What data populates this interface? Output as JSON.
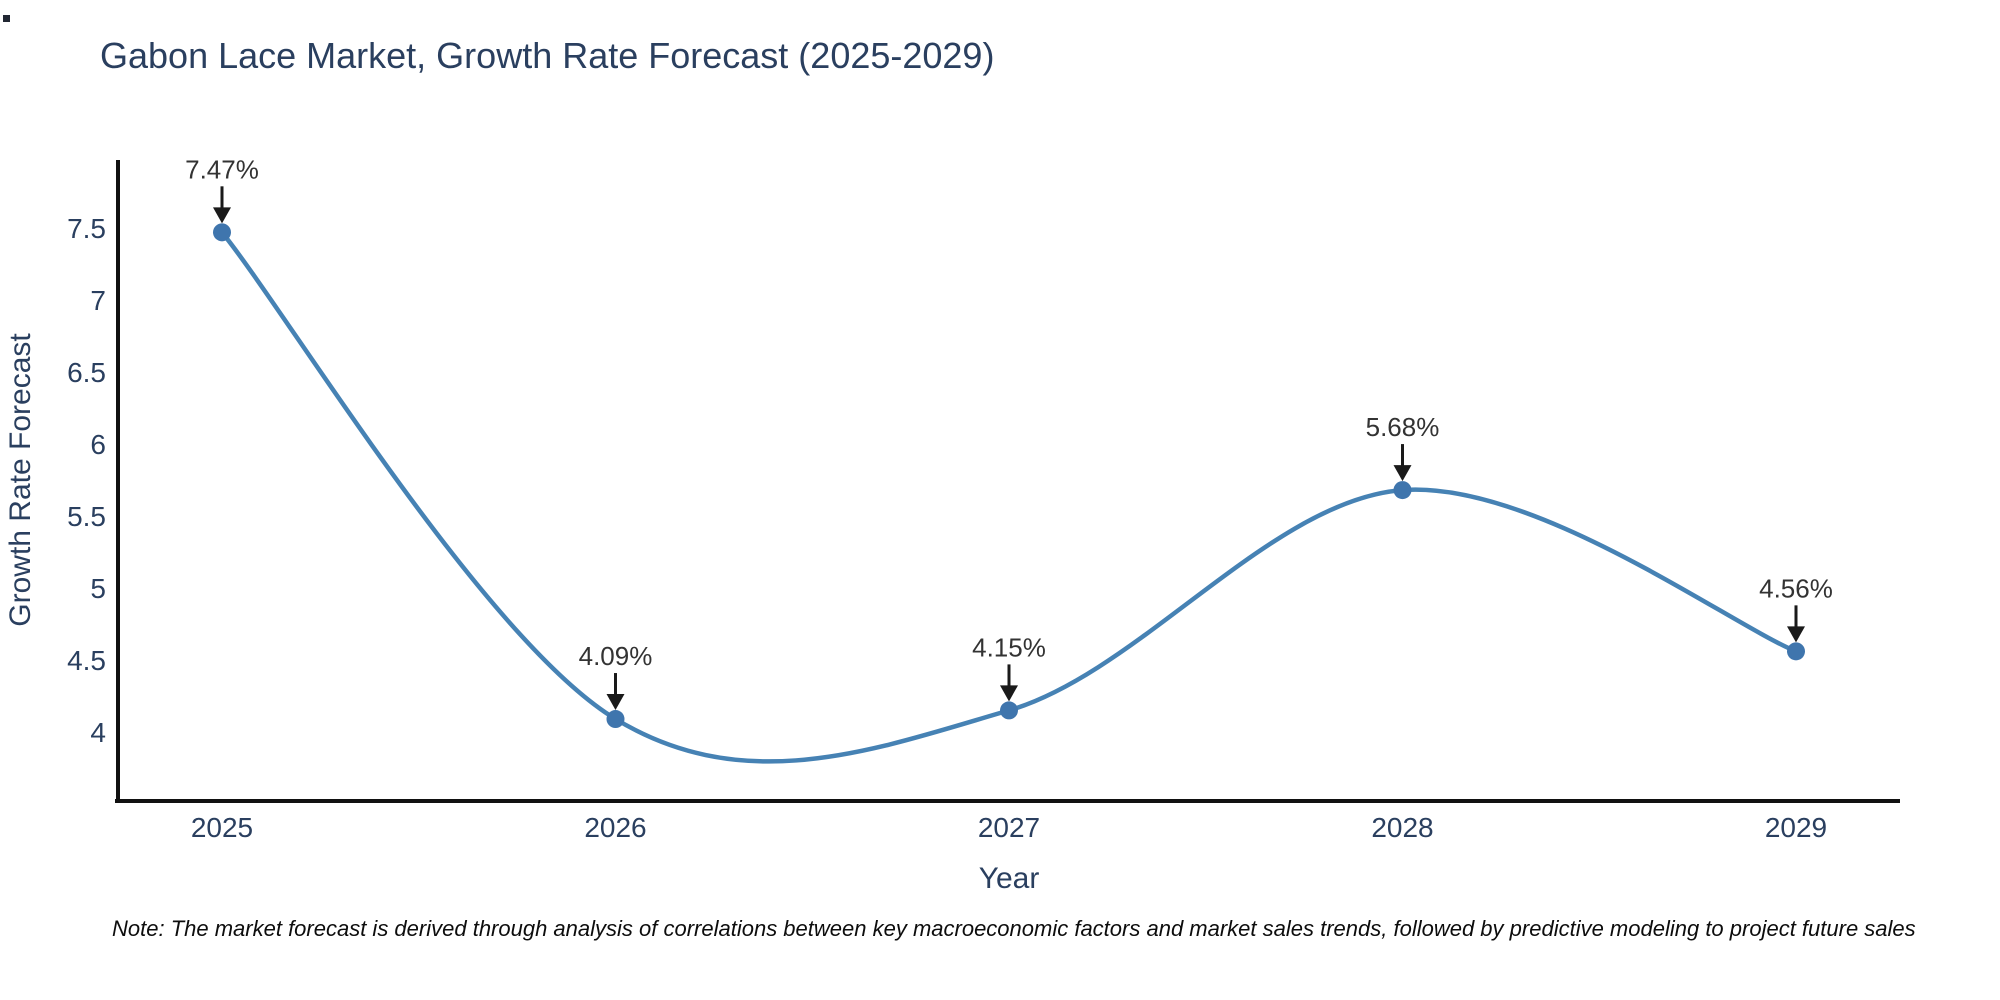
{
  "title": "Gabon Lace Market, Growth Rate Forecast (2025-2029)",
  "note": "Note: The market forecast is derived through analysis of correlations between key macroeconomic factors and market sales trends, followed by predictive modeling to project future sales",
  "chart_data": {
    "type": "line",
    "line_shape": "spline",
    "x": [
      2025,
      2026,
      2027,
      2028,
      2029
    ],
    "series": [
      {
        "name": "Growth Rate Forecast",
        "values": [
          7.47,
          4.09,
          4.15,
          5.68,
          4.56
        ]
      }
    ],
    "point_labels": [
      "7.47%",
      "4.09%",
      "4.15%",
      "5.68%",
      "4.56%"
    ],
    "title": "Gabon Lace Market, Growth Rate Forecast (2025-2029)",
    "xlabel": "Year",
    "ylabel": "Growth Rate Forecast",
    "xtick_labels": [
      "2025",
      "2026",
      "2027",
      "2028",
      "2029"
    ],
    "yticks": [
      7.5,
      7,
      6.5,
      6,
      5.5,
      5,
      4.5,
      4
    ],
    "ytick_labels": [
      "7.5",
      "7",
      "6.5",
      "6",
      "5.5",
      "5",
      "4.5",
      "4"
    ],
    "ylim": [
      3.52,
      7.97
    ],
    "grid": false,
    "legend_position": "none",
    "annotation_style": "value-labels-with-down-arrows",
    "colors": {
      "line": "#4682B4",
      "marker": "#3F75AD",
      "axis": "#111111",
      "axis_text": "#2a3f5f",
      "annotation_text": "#333333",
      "arrow": "#1a1a1a",
      "background": "#ffffff"
    }
  }
}
